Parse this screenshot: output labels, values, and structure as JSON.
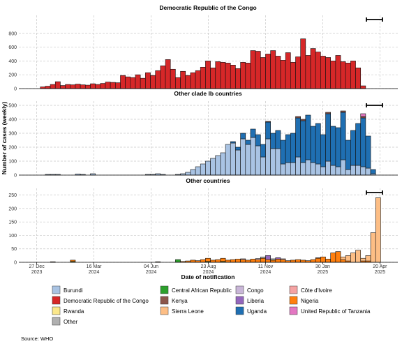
{
  "chart_data": {
    "type": "bar",
    "stacked": true,
    "x": [
      "2024-01-01",
      "2024-01-08",
      "2024-01-15",
      "2024-01-22",
      "2024-01-29",
      "2024-02-05",
      "2024-02-12",
      "2024-02-19",
      "2024-02-26",
      "2024-03-04",
      "2024-03-11",
      "2024-03-18",
      "2024-03-25",
      "2024-04-01",
      "2024-04-08",
      "2024-04-15",
      "2024-04-22",
      "2024-04-29",
      "2024-05-06",
      "2024-05-13",
      "2024-05-20",
      "2024-05-27",
      "2024-06-03",
      "2024-06-10",
      "2024-06-17",
      "2024-06-24",
      "2024-07-01",
      "2024-07-08",
      "2024-07-15",
      "2024-07-22",
      "2024-07-29",
      "2024-08-05",
      "2024-08-12",
      "2024-08-19",
      "2024-08-26",
      "2024-09-02",
      "2024-09-09",
      "2024-09-16",
      "2024-09-23",
      "2024-09-30",
      "2024-10-07",
      "2024-10-14",
      "2024-10-21",
      "2024-10-28",
      "2024-11-04",
      "2024-11-11",
      "2024-11-18",
      "2024-11-25",
      "2024-12-02",
      "2024-12-09",
      "2024-12-16",
      "2024-12-23",
      "2024-12-30",
      "2025-01-06",
      "2025-01-13",
      "2025-01-20",
      "2025-01-27",
      "2025-02-03",
      "2025-02-10",
      "2025-02-17",
      "2025-02-24",
      "2025-03-03",
      "2025-03-10",
      "2025-03-17",
      "2025-03-24",
      "2025-03-31",
      "2025-04-07",
      "2025-04-14"
    ],
    "xlim": [
      "2023-12-02",
      "2025-05-15"
    ],
    "xticks": [
      {
        "value": "2023-12-27",
        "label": "27 Dec 2023"
      },
      {
        "value": "2024-03-16",
        "label": "16 Mar 2024"
      },
      {
        "value": "2024-06-04",
        "label": "04 Jun 2024"
      },
      {
        "value": "2024-08-23",
        "label": "23 Aug 2024"
      },
      {
        "value": "2024-11-11",
        "label": "11 Nov 2024"
      },
      {
        "value": "2025-01-30",
        "label": "30 Jan 2025"
      },
      {
        "value": "2025-04-20",
        "label": "20 Apr 2025"
      }
    ],
    "xlabel": "Date of notification",
    "ylabel": "Number of cases (weekly)",
    "grid": true,
    "source": "Source: WHO",
    "legend": [
      {
        "name": "Burundi",
        "color": "#a9c3e3"
      },
      {
        "name": "Central African Republic",
        "color": "#2ca02c"
      },
      {
        "name": "Congo",
        "color": "#c9b6d8"
      },
      {
        "name": "Côte d'Ivoire",
        "color": "#f5a3a3"
      },
      {
        "name": "Democratic Republic of the Congo",
        "color": "#d62728"
      },
      {
        "name": "Kenya",
        "color": "#8c564b"
      },
      {
        "name": "Liberia",
        "color": "#9467bd"
      },
      {
        "name": "Nigeria",
        "color": "#ff7f0e"
      },
      {
        "name": "Rwanda",
        "color": "#fbe78a"
      },
      {
        "name": "Sierra Leone",
        "color": "#fdbe85"
      },
      {
        "name": "Uganda",
        "color": "#1f6fb2"
      },
      {
        "name": "United Republic of Tanzania",
        "color": "#e377c2"
      },
      {
        "name": "Other",
        "color": "#b0b0b0"
      }
    ],
    "panels": [
      {
        "title": "Democratic Republic of the Congo",
        "ylim": [
          0,
          1060
        ],
        "yticks": [
          0,
          200,
          400,
          600,
          800
        ],
        "series": [
          {
            "name": "Democratic Republic of the Congo",
            "values": [
              25,
              35,
              60,
              100,
              45,
              60,
              55,
              65,
              55,
              50,
              70,
              60,
              75,
              95,
              90,
              85,
              190,
              170,
              160,
              200,
              150,
              230,
              190,
              260,
              330,
              420,
              280,
              160,
              250,
              190,
              230,
              260,
              310,
              400,
              300,
              390,
              380,
              370,
              340,
              290,
              380,
              370,
              550,
              540,
              450,
              500,
              550,
              470,
              410,
              520,
              380,
              460,
              720,
              480,
              580,
              530,
              470,
              450,
              400,
              480,
              390,
              370,
              400,
              300,
              40,
              0,
              0,
              0
            ]
          }
        ]
      },
      {
        "title": "Other clade Ib countries",
        "ylim": [
          0,
          530
        ],
        "yticks": [
          0,
          100,
          200,
          300,
          400,
          500
        ],
        "series": [
          {
            "name": "Burundi",
            "values": [
              0,
              5,
              5,
              5,
              0,
              0,
              0,
              8,
              5,
              0,
              10,
              0,
              0,
              0,
              0,
              0,
              0,
              0,
              0,
              0,
              0,
              5,
              5,
              10,
              5,
              0,
              0,
              5,
              10,
              20,
              40,
              60,
              80,
              100,
              120,
              140,
              160,
              220,
              230,
              180,
              260,
              220,
              270,
              210,
              130,
              260,
              190,
              190,
              80,
              90,
              90,
              130,
              90,
              110,
              90,
              80,
              60,
              100,
              70,
              60,
              110,
              40,
              70,
              70,
              60,
              50,
              10,
              0
            ]
          },
          {
            "name": "Uganda",
            "values": [
              0,
              0,
              0,
              0,
              0,
              0,
              0,
              0,
              0,
              0,
              0,
              0,
              0,
              0,
              0,
              0,
              0,
              0,
              0,
              0,
              0,
              0,
              0,
              0,
              0,
              0,
              0,
              0,
              0,
              0,
              0,
              0,
              0,
              0,
              0,
              0,
              0,
              0,
              10,
              20,
              40,
              30,
              60,
              80,
              90,
              120,
              110,
              130,
              170,
              200,
              210,
              280,
              300,
              320,
              260,
              290,
              230,
              340,
              280,
              280,
              340,
              210,
              250,
              300,
              350,
              230,
              30,
              0
            ]
          },
          {
            "name": "Kenya",
            "values": [
              0,
              0,
              0,
              0,
              0,
              0,
              0,
              0,
              0,
              0,
              0,
              0,
              0,
              0,
              0,
              0,
              0,
              0,
              0,
              0,
              0,
              0,
              0,
              0,
              0,
              0,
              0,
              0,
              0,
              0,
              0,
              0,
              0,
              0,
              0,
              0,
              0,
              0,
              0,
              0,
              0,
              0,
              0,
              0,
              0,
              5,
              0,
              0,
              0,
              0,
              0,
              10,
              10,
              0,
              0,
              0,
              0,
              10,
              0,
              0,
              10,
              0,
              0,
              0,
              10,
              0,
              0,
              0
            ]
          },
          {
            "name": "United Republic of Tanzania",
            "values": [
              0,
              0,
              0,
              0,
              0,
              0,
              0,
              0,
              0,
              0,
              0,
              0,
              0,
              0,
              0,
              0,
              0,
              0,
              0,
              0,
              0,
              0,
              0,
              0,
              0,
              0,
              0,
              0,
              0,
              0,
              0,
              0,
              0,
              0,
              0,
              0,
              0,
              0,
              0,
              0,
              0,
              0,
              0,
              0,
              0,
              0,
              0,
              0,
              0,
              0,
              0,
              0,
              0,
              0,
              0,
              0,
              0,
              0,
              0,
              0,
              0,
              0,
              0,
              0,
              20,
              0,
              0,
              0
            ]
          }
        ]
      },
      {
        "title": "Other countries",
        "ylim": [
          0,
          275
        ],
        "yticks": [
          0,
          50,
          100,
          150,
          200,
          250
        ],
        "series": [
          {
            "name": "Central African Republic",
            "values": [
              0,
              0,
              0,
              0,
              0,
              0,
              3,
              0,
              0,
              0,
              0,
              0,
              0,
              0,
              0,
              0,
              0,
              0,
              0,
              0,
              0,
              0,
              0,
              0,
              0,
              0,
              0,
              10,
              0,
              0,
              0,
              0,
              0,
              3,
              0,
              0,
              3,
              0,
              0,
              0,
              0,
              0,
              0,
              0,
              0,
              0,
              0,
              0,
              0,
              0,
              0,
              0,
              0,
              0,
              0,
              0,
              0,
              0,
              0,
              0,
              0,
              0,
              0,
              0,
              0,
              0,
              0,
              0
            ]
          },
          {
            "name": "Nigeria",
            "values": [
              0,
              0,
              2,
              0,
              0,
              0,
              5,
              0,
              0,
              0,
              0,
              0,
              0,
              0,
              0,
              0,
              0,
              0,
              0,
              0,
              0,
              0,
              0,
              2,
              0,
              0,
              0,
              0,
              3,
              5,
              8,
              6,
              10,
              12,
              8,
              10,
              12,
              8,
              10,
              12,
              10,
              8,
              12,
              10,
              15,
              10,
              8,
              12,
              10,
              6,
              8,
              10,
              8,
              6,
              10,
              15,
              20,
              12,
              35,
              40,
              10,
              5,
              0,
              0,
              5,
              5,
              0,
              0
            ]
          },
          {
            "name": "Congo",
            "values": [
              0,
              0,
              0,
              0,
              0,
              0,
              0,
              0,
              0,
              0,
              0,
              0,
              0,
              0,
              0,
              0,
              0,
              0,
              0,
              0,
              0,
              0,
              0,
              0,
              0,
              0,
              0,
              0,
              0,
              0,
              0,
              0,
              0,
              0,
              0,
              0,
              0,
              0,
              0,
              0,
              3,
              0,
              0,
              4,
              0,
              0,
              0,
              0,
              3,
              0,
              0,
              0,
              0,
              0,
              0,
              2,
              0,
              0,
              0,
              0,
              0,
              0,
              0,
              0,
              0,
              0,
              0,
              0
            ]
          },
          {
            "name": "Liberia",
            "values": [
              0,
              0,
              0,
              0,
              0,
              0,
              0,
              0,
              0,
              0,
              0,
              0,
              0,
              0,
              0,
              0,
              0,
              0,
              0,
              0,
              0,
              0,
              0,
              0,
              0,
              0,
              0,
              0,
              0,
              0,
              0,
              0,
              0,
              0,
              0,
              0,
              0,
              0,
              0,
              0,
              0,
              0,
              0,
              0,
              0,
              15,
              0,
              5,
              0,
              0,
              0,
              0,
              0,
              0,
              0,
              0,
              0,
              0,
              0,
              0,
              0,
              0,
              0,
              0,
              0,
              0,
              0,
              0
            ]
          },
          {
            "name": "Other",
            "values": [
              0,
              0,
              0,
              0,
              0,
              0,
              0,
              0,
              0,
              0,
              0,
              0,
              0,
              0,
              0,
              0,
              0,
              0,
              0,
              0,
              0,
              0,
              0,
              0,
              0,
              0,
              0,
              0,
              0,
              0,
              0,
              0,
              0,
              0,
              0,
              0,
              0,
              0,
              0,
              0,
              0,
              0,
              0,
              0,
              5,
              0,
              5,
              0,
              0,
              0,
              0,
              0,
              0,
              0,
              0,
              0,
              0,
              0,
              0,
              0,
              0,
              0,
              0,
              0,
              0,
              0,
              0,
              0
            ]
          },
          {
            "name": "Sierra Leone",
            "values": [
              0,
              0,
              0,
              0,
              0,
              0,
              0,
              0,
              0,
              0,
              0,
              0,
              0,
              0,
              0,
              0,
              0,
              0,
              0,
              0,
              0,
              0,
              0,
              0,
              0,
              0,
              0,
              0,
              0,
              0,
              0,
              0,
              0,
              0,
              0,
              0,
              0,
              0,
              0,
              0,
              0,
              0,
              0,
              0,
              0,
              0,
              0,
              0,
              0,
              0,
              0,
              0,
              0,
              0,
              0,
              0,
              0,
              0,
              0,
              0,
              10,
              20,
              35,
              45,
              10,
              20,
              110,
              240
            ]
          }
        ]
      }
    ]
  }
}
